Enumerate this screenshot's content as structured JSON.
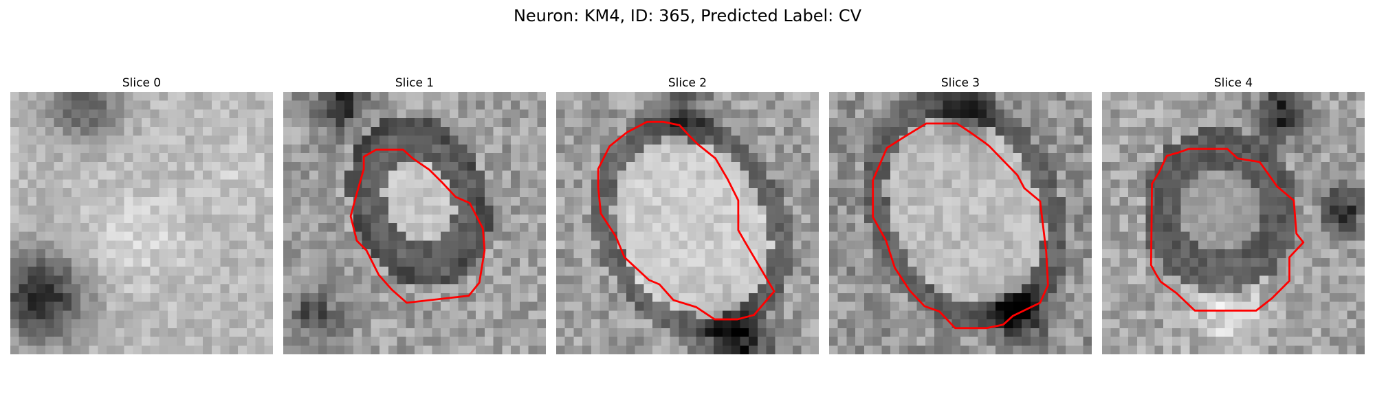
{
  "figure": {
    "title": "Neuron: KM4, ID: 365, Predicted Label: CV",
    "contour_color": "#ff0000",
    "panels": [
      {
        "title": "Slice 0",
        "has_contour": false
      },
      {
        "title": "Slice 1",
        "has_contour": true
      },
      {
        "title": "Slice 2",
        "has_contour": true
      },
      {
        "title": "Slice 3",
        "has_contour": true
      },
      {
        "title": "Slice 4",
        "has_contour": true
      }
    ]
  }
}
